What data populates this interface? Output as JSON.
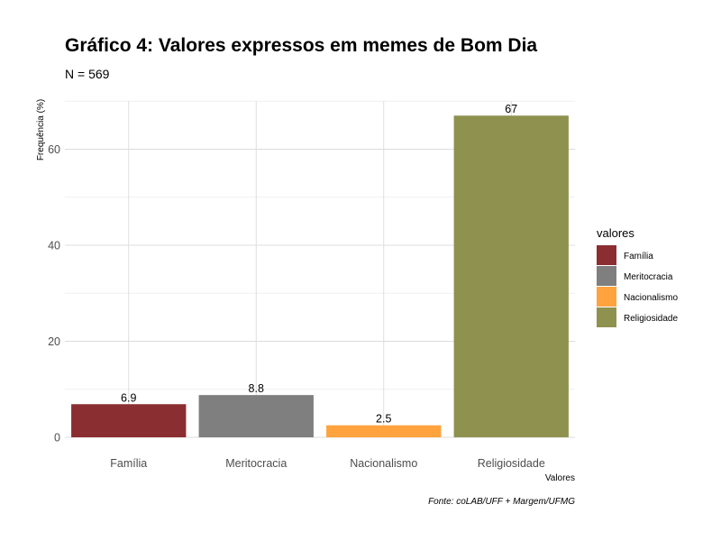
{
  "chart_data": {
    "type": "bar",
    "title": "Gráfico 4: Valores expressos em memes de Bom Dia",
    "subtitle": "N = 569",
    "categories": [
      "Família",
      "Meritocracia",
      "Nacionalismo",
      "Religiosidade"
    ],
    "values": [
      6.9,
      8.8,
      2.5,
      67
    ],
    "value_labels": [
      "6.9",
      "8.8",
      "2.5",
      "67"
    ],
    "colors": [
      "#8B2E32",
      "#7F7F7F",
      "#FFA33F",
      "#8F924F"
    ],
    "xlabel": "Valores",
    "ylabel": "Frequência (%)",
    "ylim": [
      0,
      70
    ],
    "yticks": [
      0,
      20,
      40,
      60
    ],
    "grid": true,
    "legend": {
      "title": "valores",
      "placement": "right",
      "items": [
        "Família",
        "Meritocracia",
        "Nacionalismo",
        "Religiosidade"
      ]
    },
    "caption": "Fonte: coLAB/UFF + Margem/UFMG"
  }
}
